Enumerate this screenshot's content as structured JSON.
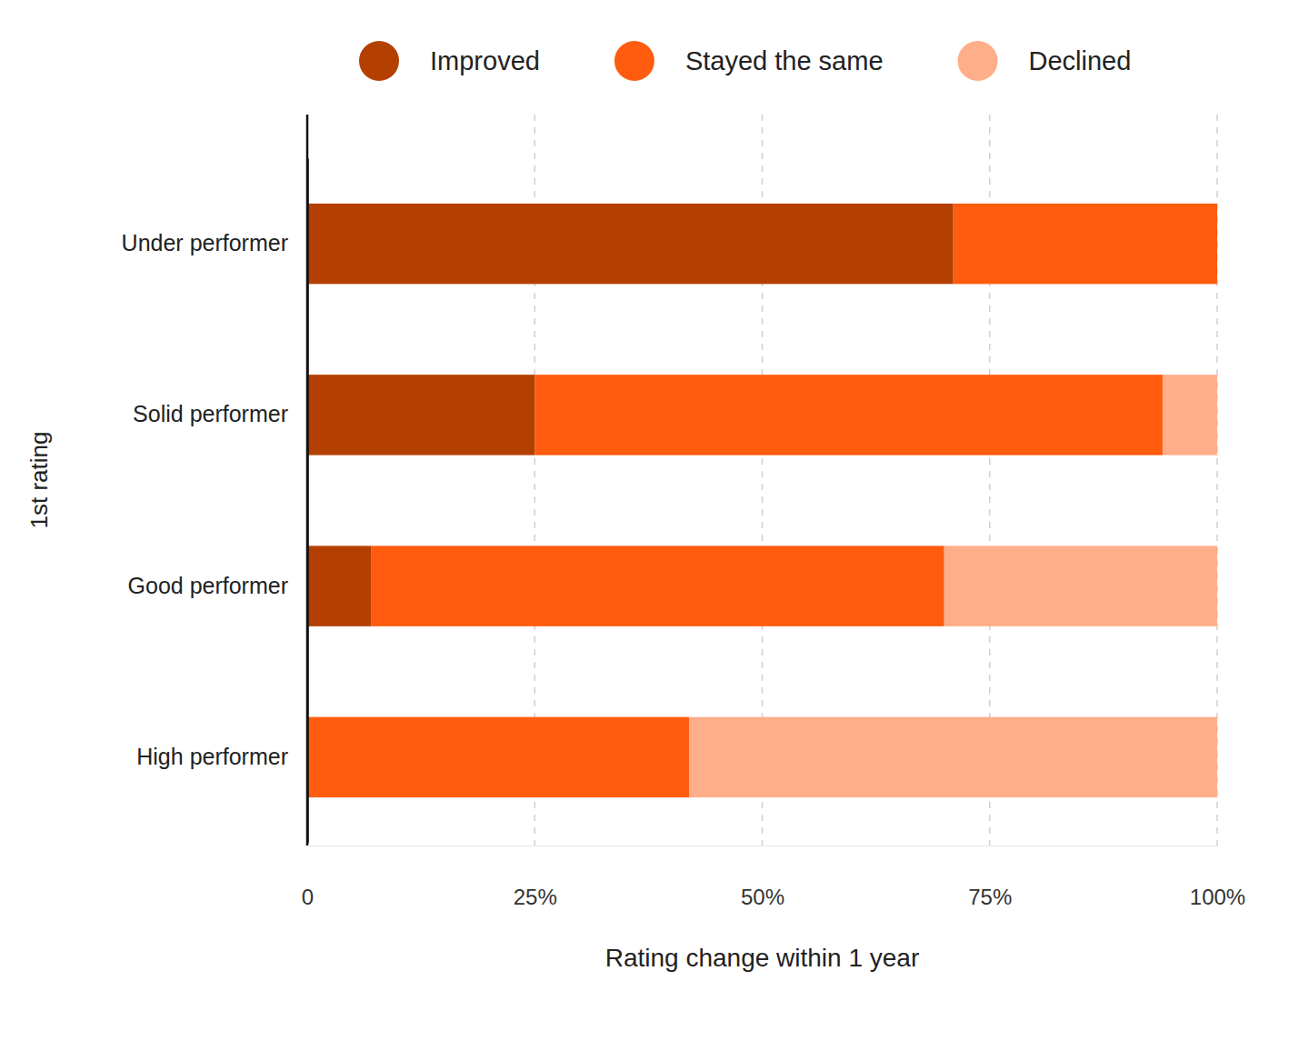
{
  "chart_data": {
    "type": "bar",
    "orientation": "horizontal",
    "stacked": true,
    "categories": [
      "Under performer",
      "Solid performer",
      "Good performer",
      "High performer"
    ],
    "series": [
      {
        "name": "Improved",
        "color": "#b34000",
        "values": [
          71,
          25,
          7,
          0
        ]
      },
      {
        "name": "Stayed the same",
        "color": "#ff5c0f",
        "values": [
          29,
          69,
          63,
          42
        ]
      },
      {
        "name": "Declined",
        "color": "#ffae8a",
        "values": [
          0,
          6,
          30,
          58
        ]
      }
    ],
    "xlim": [
      0,
      100
    ],
    "xticks": [
      0,
      {
        "value": 25,
        "label": "25%"
      },
      {
        "value": 50,
        "label": "50%"
      },
      {
        "value": 75,
        "label": "75%"
      },
      {
        "value": 100,
        "label": "100%"
      }
    ],
    "xlabel": "Rating change within 1 year",
    "ylabel": "1st rating",
    "grid": true,
    "legend": "top"
  }
}
